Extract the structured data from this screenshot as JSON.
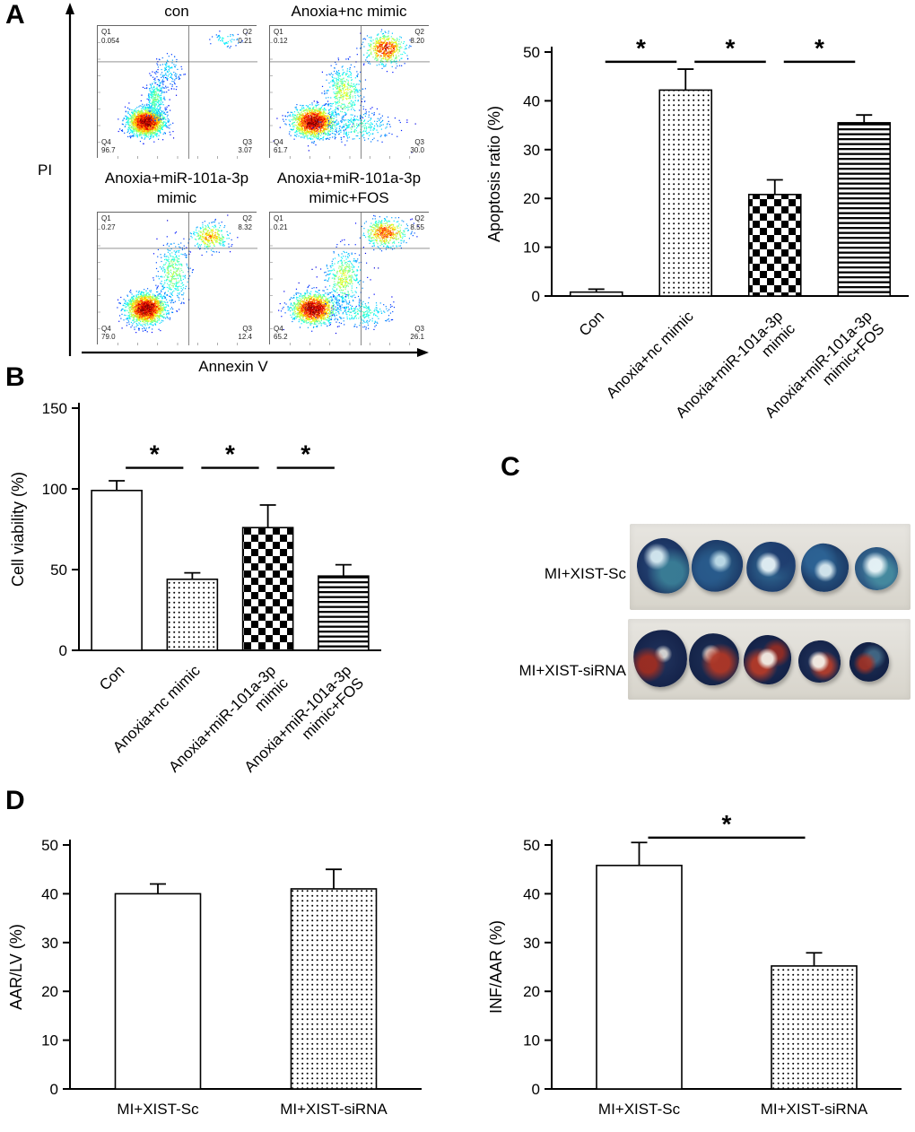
{
  "figure": {
    "panel_a": {
      "label": "A",
      "flow": {
        "y_axis_label": "PI",
        "x_axis_label": "Annexin V",
        "plots": [
          {
            "title_lines": [
              "con"
            ],
            "quadrants": [
              {
                "name": "Q1",
                "value": "0.054",
                "pos": "tl"
              },
              {
                "name": "Q2",
                "value": "0.21",
                "pos": "tr"
              },
              {
                "name": "Q4",
                "value": "96.7",
                "pos": "bl"
              },
              {
                "name": "Q3",
                "value": "3.07",
                "pos": "br"
              }
            ]
          },
          {
            "title_lines": [
              "Anoxia+nc mimic"
            ],
            "quadrants": [
              {
                "name": "Q1",
                "value": "0.12",
                "pos": "tl"
              },
              {
                "name": "Q2",
                "value": "8.20",
                "pos": "tr"
              },
              {
                "name": "Q4",
                "value": "61.7",
                "pos": "bl"
              },
              {
                "name": "Q3",
                "value": "30.0",
                "pos": "br"
              }
            ]
          },
          {
            "title_lines": [
              "Anoxia+miR-101a-3p",
              "mimic"
            ],
            "quadrants": [
              {
                "name": "Q1",
                "value": "0.27",
                "pos": "tl"
              },
              {
                "name": "Q2",
                "value": "8.32",
                "pos": "tr"
              },
              {
                "name": "Q4",
                "value": "79.0",
                "pos": "bl"
              },
              {
                "name": "Q3",
                "value": "12.4",
                "pos": "br"
              }
            ]
          },
          {
            "title_lines": [
              "Anoxia+miR-101a-3p",
              "mimic+FOS"
            ],
            "quadrants": [
              {
                "name": "Q1",
                "value": "0.21",
                "pos": "tl"
              },
              {
                "name": "Q2",
                "value": "8.55",
                "pos": "tr"
              },
              {
                "name": "Q4",
                "value": "65.2",
                "pos": "bl"
              },
              {
                "name": "Q3",
                "value": "26.1",
                "pos": "br"
              }
            ]
          }
        ]
      }
    },
    "panel_b": {
      "label": "B"
    },
    "panel_c": {
      "label": "C",
      "rows": [
        {
          "label": "MI+XIST-Sc"
        },
        {
          "label": "MI+XIST-siRNA"
        }
      ]
    },
    "panel_d": {
      "label": "D"
    }
  },
  "chart_data": [
    {
      "id": "apoptosis",
      "type": "bar",
      "title": "",
      "ylabel": "Apoptosis ratio (%)",
      "ylim": [
        0,
        50
      ],
      "yticks": [
        0,
        10,
        20,
        30,
        40,
        50
      ],
      "categories": [
        [
          "Con"
        ],
        [
          "Anoxia+nc mimic"
        ],
        [
          "Anoxia+miR-101a-3p",
          "mimic"
        ],
        [
          "Anoxia+miR-101a-3p",
          "mimic+FOS"
        ]
      ],
      "values": [
        0.8,
        42.2,
        20.8,
        35.5
      ],
      "errors": [
        0.6,
        4.3,
        3.0,
        1.6
      ],
      "patterns": [
        "plain",
        "dots",
        "checker",
        "hlines"
      ],
      "significance": [
        {
          "from": 0,
          "to": 1,
          "label": "*",
          "y": 48
        },
        {
          "from": 1,
          "to": 2,
          "label": "*",
          "y": 48
        },
        {
          "from": 2,
          "to": 3,
          "label": "*",
          "y": 48
        }
      ]
    },
    {
      "id": "viability",
      "type": "bar",
      "title": "",
      "ylabel": "Cell viability (%)",
      "ylim": [
        0,
        150
      ],
      "yticks": [
        0,
        50,
        100,
        150
      ],
      "categories": [
        [
          "Con"
        ],
        [
          "Anoxia+nc mimic"
        ],
        [
          "Anoxia+miR-101a-3p",
          "mimic"
        ],
        [
          "Anoxia+miR-101a-3p",
          "mimic+FOS"
        ]
      ],
      "values": [
        99,
        44,
        76,
        46
      ],
      "errors": [
        6,
        4,
        14,
        7
      ],
      "patterns": [
        "plain",
        "dots",
        "checker",
        "hlines"
      ],
      "significance": [
        {
          "from": 0,
          "to": 1,
          "label": "*",
          "y": 113
        },
        {
          "from": 1,
          "to": 2,
          "label": "*",
          "y": 113
        },
        {
          "from": 2,
          "to": 3,
          "label": "*",
          "y": 113
        }
      ]
    },
    {
      "id": "aar_lv",
      "type": "bar",
      "title": "",
      "ylabel": "AAR/LV (%)",
      "ylim": [
        0,
        50
      ],
      "yticks": [
        0,
        10,
        20,
        30,
        40,
        50
      ],
      "categories": [
        [
          "MI+XIST-Sc"
        ],
        [
          "MI+XIST-siRNA"
        ]
      ],
      "values": [
        40,
        41
      ],
      "errors": [
        2,
        4
      ],
      "patterns": [
        "plain",
        "dots"
      ],
      "significance": []
    },
    {
      "id": "inf_aar",
      "type": "bar",
      "title": "",
      "ylabel": "INF/AAR (%)",
      "ylim": [
        0,
        50
      ],
      "yticks": [
        0,
        10,
        20,
        30,
        40,
        50
      ],
      "categories": [
        [
          "MI+XIST-Sc"
        ],
        [
          "MI+XIST-siRNA"
        ]
      ],
      "values": [
        45.8,
        25.2
      ],
      "errors": [
        4.7,
        2.7
      ],
      "patterns": [
        "plain",
        "dots"
      ],
      "significance": [
        {
          "from": 0,
          "to": 1,
          "label": "*",
          "y": 51.5
        }
      ]
    }
  ]
}
